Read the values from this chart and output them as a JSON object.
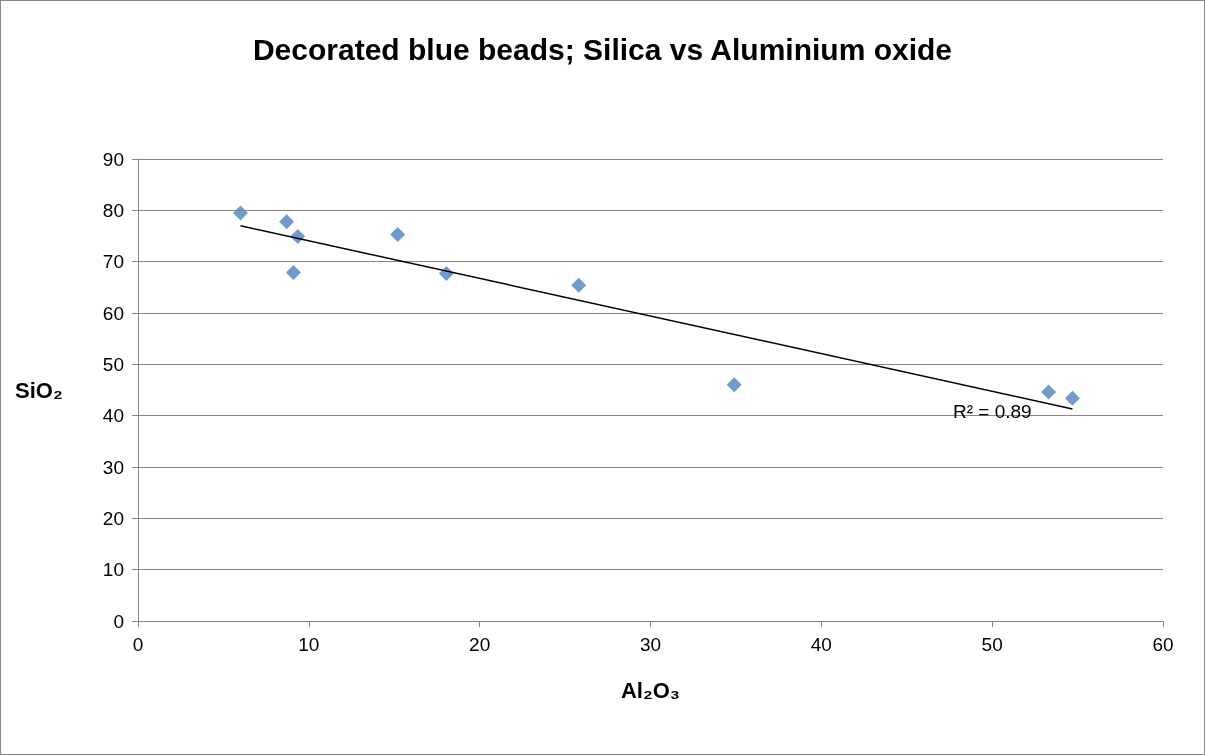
{
  "chart_data": {
    "type": "scatter",
    "title": "Decorated blue beads; Silica vs Aluminium oxide",
    "xlabel": "Al₂O₃",
    "ylabel": "SiO₂",
    "series": [
      {
        "color": "#4f81bd",
        "marker": "diamond",
        "x": [
          6.0,
          8.7,
          9.35,
          9.1,
          15.2,
          18.05,
          25.8,
          34.9,
          53.3,
          54.7
        ],
        "values": [
          79.5,
          77.8,
          74.9,
          67.9,
          75.3,
          67.7,
          65.4,
          46.0,
          44.6,
          43.4
        ]
      },
      {
        "type": "line",
        "color": "#000000",
        "marker": "none",
        "x": [
          6.0,
          54.7
        ],
        "values": [
          77.0,
          41.3
        ]
      }
    ],
    "annotations": [
      "R² = 0.89"
    ],
    "xlim": [
      0,
      60
    ],
    "xticks": [
      0,
      10,
      20,
      30,
      40,
      50,
      60
    ],
    "ylim": [
      0,
      90
    ],
    "yticks": [
      0,
      10,
      20,
      30,
      40,
      50,
      60,
      70,
      80,
      90
    ],
    "grid": "y"
  }
}
